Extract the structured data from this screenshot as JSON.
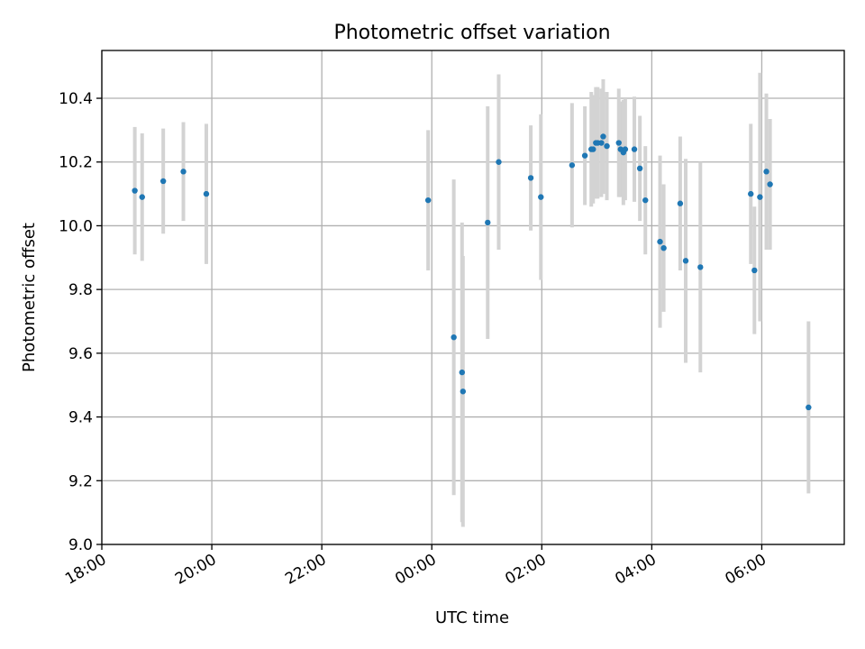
{
  "chart_data": {
    "type": "scatter",
    "title": "Photometric offset variation",
    "xlabel": "UTC time",
    "ylabel": "Photometric offset",
    "xlim": [
      "18:00",
      "07:30"
    ],
    "ylim": [
      9.0,
      10.55
    ],
    "x_ticks": [
      "18:00",
      "20:00",
      "22:00",
      "00:00",
      "02:00",
      "04:00",
      "06:00"
    ],
    "y_ticks": [
      "9.0",
      "9.2",
      "9.4",
      "9.6",
      "9.8",
      "10.0",
      "10.2",
      "10.4"
    ],
    "grid": true,
    "colors": {
      "point": "#1f77b4",
      "errorbar": "#d3d3d3",
      "grid": "#b0b0b0"
    },
    "points": [
      {
        "x": "18:36",
        "y": 10.11,
        "err": 0.2
      },
      {
        "x": "18:44",
        "y": 10.09,
        "err": 0.2
      },
      {
        "x": "19:07",
        "y": 10.14,
        "err": 0.165
      },
      {
        "x": "19:29",
        "y": 10.17,
        "err": 0.155
      },
      {
        "x": "19:54",
        "y": 10.1,
        "err": 0.22
      },
      {
        "x": "23:56",
        "y": 10.08,
        "err": 0.22
      },
      {
        "x": "00:24",
        "y": 9.65,
        "err": 0.495
      },
      {
        "x": "00:33",
        "y": 9.54,
        "err": 0.47
      },
      {
        "x": "00:34",
        "y": 9.48,
        "err": 0.425
      },
      {
        "x": "01:01",
        "y": 10.01,
        "err": 0.365
      },
      {
        "x": "01:13",
        "y": 10.2,
        "err": 0.275
      },
      {
        "x": "01:48",
        "y": 10.15,
        "err": 0.165
      },
      {
        "x": "01:59",
        "y": 10.09,
        "err": 0.26
      },
      {
        "x": "02:33",
        "y": 10.19,
        "err": 0.195
      },
      {
        "x": "02:47",
        "y": 10.22,
        "err": 0.155
      },
      {
        "x": "02:54",
        "y": 10.24,
        "err": 0.18
      },
      {
        "x": "02:56",
        "y": 10.24,
        "err": 0.17
      },
      {
        "x": "02:59",
        "y": 10.26,
        "err": 0.175
      },
      {
        "x": "03:01",
        "y": 10.26,
        "err": 0.175
      },
      {
        "x": "03:05",
        "y": 10.26,
        "err": 0.17
      },
      {
        "x": "03:07",
        "y": 10.28,
        "err": 0.18
      },
      {
        "x": "03:11",
        "y": 10.25,
        "err": 0.17
      },
      {
        "x": "03:24",
        "y": 10.26,
        "err": 0.17
      },
      {
        "x": "03:26",
        "y": 10.24,
        "err": 0.15
      },
      {
        "x": "03:29",
        "y": 10.23,
        "err": 0.165
      },
      {
        "x": "03:31",
        "y": 10.24,
        "err": 0.16
      },
      {
        "x": "03:41",
        "y": 10.24,
        "err": 0.165
      },
      {
        "x": "03:47",
        "y": 10.18,
        "err": 0.165
      },
      {
        "x": "03:53",
        "y": 10.08,
        "err": 0.17
      },
      {
        "x": "04:09",
        "y": 9.95,
        "err": 0.27
      },
      {
        "x": "04:13",
        "y": 9.93,
        "err": 0.2
      },
      {
        "x": "04:31",
        "y": 10.07,
        "err": 0.21
      },
      {
        "x": "04:37",
        "y": 9.89,
        "err": 0.32
      },
      {
        "x": "04:53",
        "y": 9.87,
        "err": 0.33
      },
      {
        "x": "05:48",
        "y": 10.1,
        "err": 0.22
      },
      {
        "x": "05:52",
        "y": 9.86,
        "err": 0.2
      },
      {
        "x": "05:58",
        "y": 10.09,
        "err": 0.39
      },
      {
        "x": "06:05",
        "y": 10.17,
        "err": 0.245
      },
      {
        "x": "06:09",
        "y": 10.13,
        "err": 0.205
      },
      {
        "x": "06:51",
        "y": 9.43,
        "err": 0.27
      }
    ]
  }
}
